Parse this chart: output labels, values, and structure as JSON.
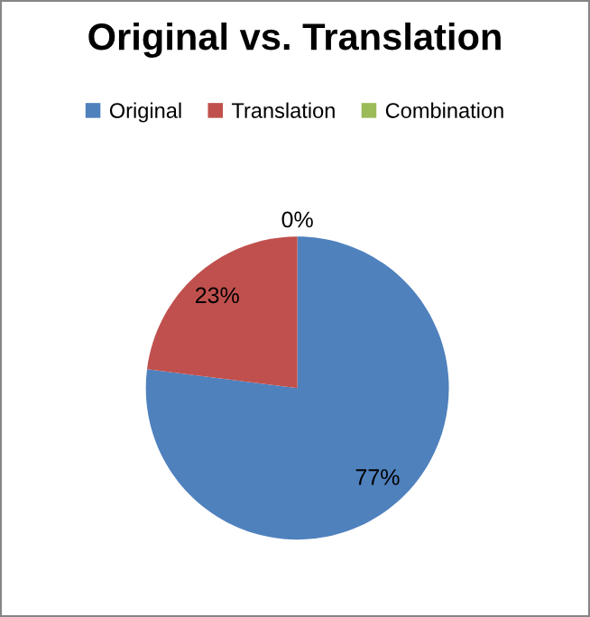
{
  "chart_data": {
    "type": "pie",
    "title": "Original vs. Translation",
    "categories": [
      "Original",
      "Translation",
      "Combination"
    ],
    "values": [
      77,
      23,
      0
    ],
    "colors": [
      "#4f81bd",
      "#c0504d",
      "#9bbb59"
    ],
    "value_labels": [
      "77%",
      "23%",
      "0%"
    ],
    "legend": "top"
  }
}
